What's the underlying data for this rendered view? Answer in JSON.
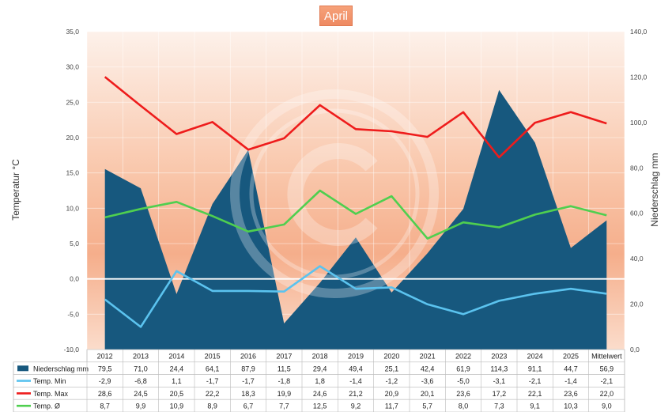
{
  "chart_data": {
    "type": "line",
    "title": "April",
    "ylabel_left": "Temperatur °C",
    "ylabel_right": "Niederschlag mm",
    "ylim_left": [
      -10,
      35
    ],
    "yticks_left": [
      "35,0",
      "30,0",
      "25,0",
      "20,0",
      "15,0",
      "10,0",
      "5,0",
      "0,0",
      "-5,0",
      "-10,0"
    ],
    "ylim_right": [
      0,
      140
    ],
    "yticks_right": [
      "140,0",
      "120,0",
      "100,0",
      "80,0",
      "60,0",
      "40,0",
      "20,0",
      "0,0"
    ],
    "categories": [
      "2012",
      "2013",
      "2014",
      "2015",
      "2016",
      "2017",
      "2018",
      "2019",
      "2020",
      "2021",
      "2022",
      "2023",
      "2024",
      "2025",
      "Mittelwert"
    ],
    "series": [
      {
        "name": "Niederschlag mm",
        "type": "area",
        "axis": "right",
        "color": "#17587e",
        "values": [
          79.5,
          71.0,
          24.4,
          64.1,
          87.9,
          11.5,
          29.4,
          49.4,
          25.1,
          42.4,
          61.9,
          114.3,
          91.1,
          44.7,
          56.9
        ],
        "labels": [
          "79,5",
          "71,0",
          "24,4",
          "64,1",
          "87,9",
          "11,5",
          "29,4",
          "49,4",
          "25,1",
          "42,4",
          "61,9",
          "114,3",
          "91,1",
          "44,7",
          "56,9"
        ]
      },
      {
        "name": "Temp. Min",
        "type": "line",
        "axis": "left",
        "color": "#5bc3ef",
        "values": [
          -2.9,
          -6.8,
          1.1,
          -1.7,
          -1.7,
          -1.8,
          1.8,
          -1.4,
          -1.2,
          -3.6,
          -5.0,
          -3.1,
          -2.1,
          -1.4,
          -2.1
        ],
        "labels": [
          "-2,9",
          "-6,8",
          "1,1",
          "-1,7",
          "-1,7",
          "-1,8",
          "1,8",
          "-1,4",
          "-1,2",
          "-3,6",
          "-5,0",
          "-3,1",
          "-2,1",
          "-1,4",
          "-2,1"
        ]
      },
      {
        "name": "Temp. Max",
        "type": "line",
        "axis": "left",
        "color": "#ee1c1c",
        "values": [
          28.6,
          24.5,
          20.5,
          22.2,
          18.3,
          19.9,
          24.6,
          21.2,
          20.9,
          20.1,
          23.6,
          17.2,
          22.1,
          23.6,
          22.0
        ],
        "labels": [
          "28,6",
          "24,5",
          "20,5",
          "22,2",
          "18,3",
          "19,9",
          "24,6",
          "21,2",
          "20,9",
          "20,1",
          "23,6",
          "17,2",
          "22,1",
          "23,6",
          "22,0"
        ]
      },
      {
        "name": "Temp. Ø",
        "type": "line",
        "axis": "left",
        "color": "#4fcf4f",
        "values": [
          8.7,
          9.9,
          10.9,
          8.9,
          6.7,
          7.7,
          12.5,
          9.2,
          11.7,
          5.7,
          8.0,
          7.3,
          9.1,
          10.3,
          9.0
        ],
        "labels": [
          "8,7",
          "9,9",
          "10,9",
          "8,9",
          "6,7",
          "7,7",
          "12,5",
          "9,2",
          "11,7",
          "5,7",
          "8,0",
          "7,3",
          "9,1",
          "10,3",
          "9,0"
        ]
      }
    ],
    "grid": true,
    "legend": "data table below plot",
    "watermark": "copyright symbol"
  }
}
